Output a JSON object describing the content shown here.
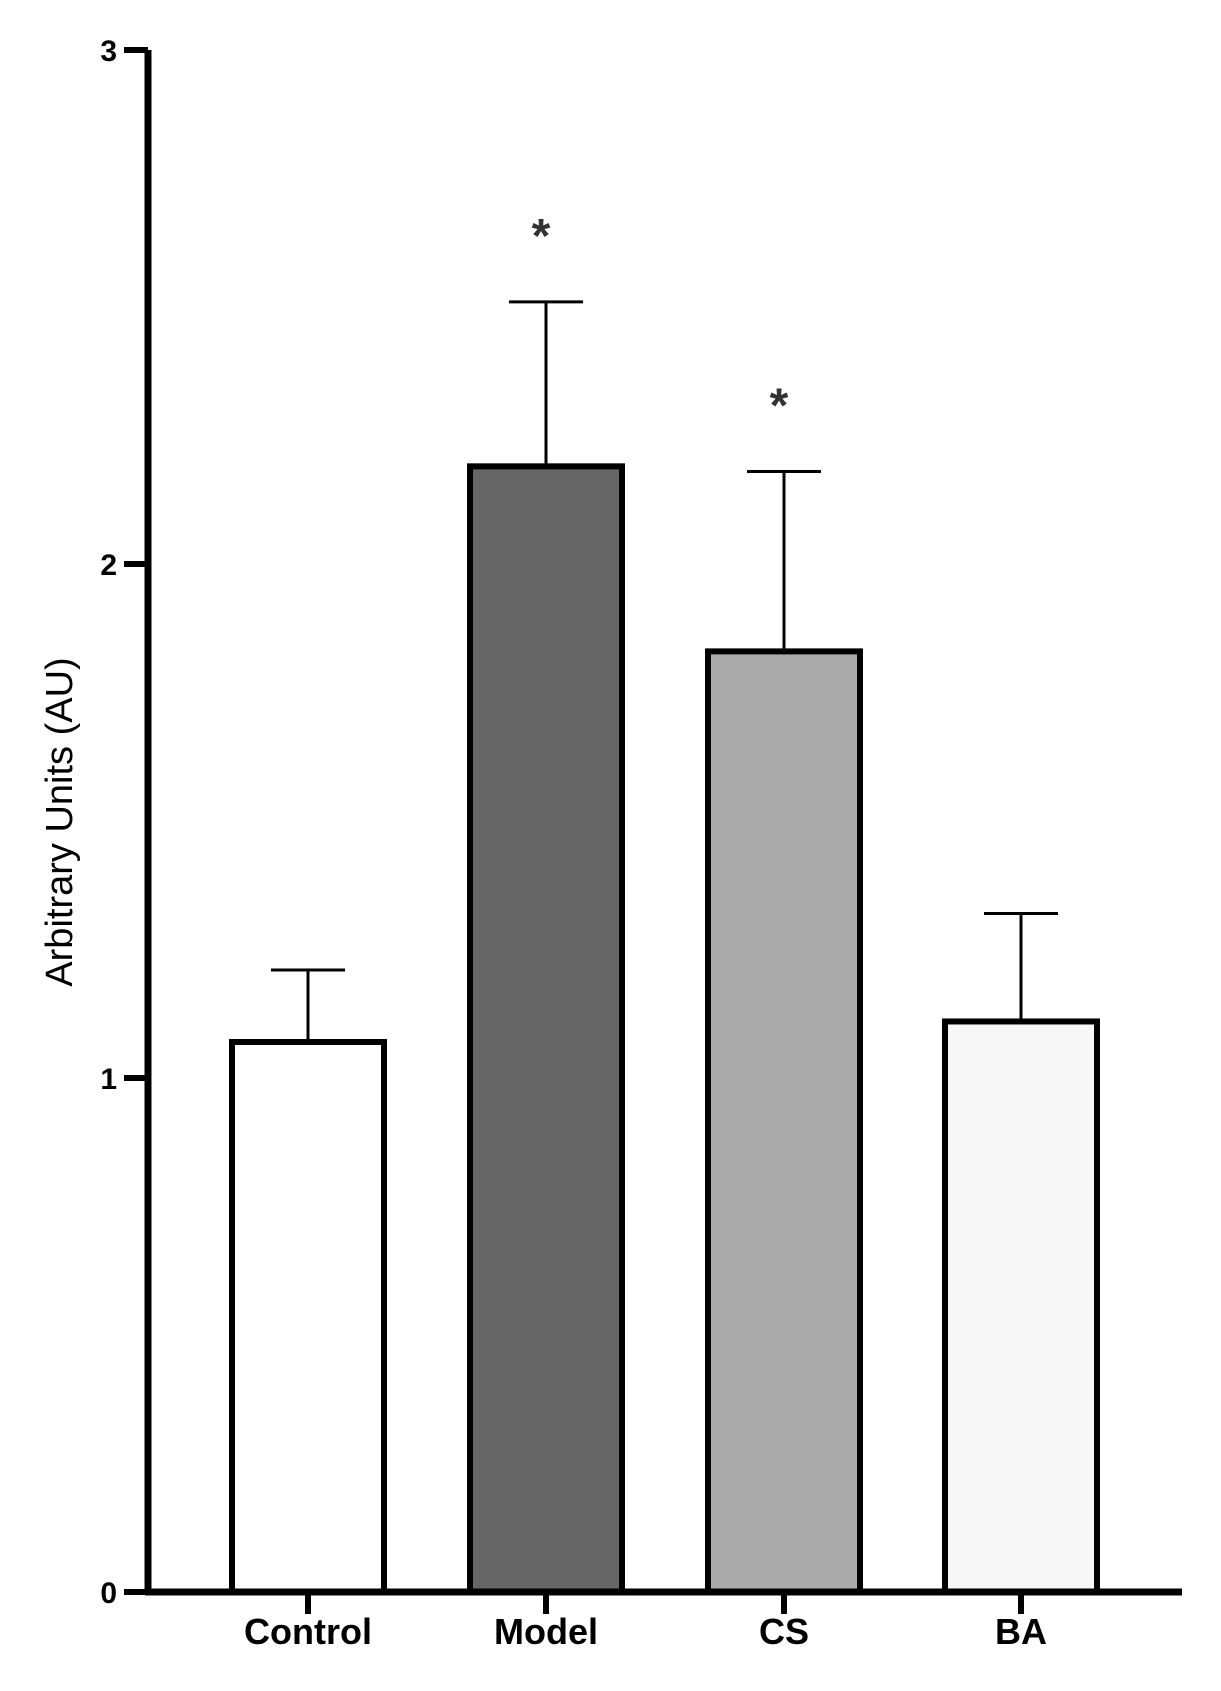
{
  "chart_data": {
    "type": "bar",
    "title": "",
    "xlabel": "",
    "ylabel": "Arbitrary Units (AU)",
    "ylim": [
      0,
      3
    ],
    "yticks": [
      "0",
      "1",
      "2",
      "3"
    ],
    "grid": false,
    "categories": [
      "Control",
      "Model",
      "CS",
      "BA"
    ],
    "values": [
      1.07,
      2.19,
      1.83,
      1.11
    ],
    "error_upper": [
      0.14,
      0.32,
      0.35,
      0.21
    ],
    "significance": [
      "",
      "*",
      "*",
      ""
    ],
    "colors": [
      "#ffffff",
      "#666666",
      "#aaaaaa",
      "#f7f7f7"
    ],
    "edge_color": "#000000"
  }
}
